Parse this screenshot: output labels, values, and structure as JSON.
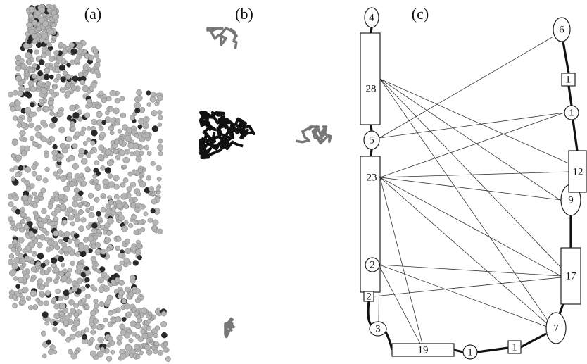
{
  "panels": [
    {
      "label": "(a)"
    },
    {
      "label": "(b)"
    },
    {
      "label": "(c)"
    }
  ],
  "nodes": [
    {
      "label": "4"
    },
    {
      "label": "28"
    },
    {
      "label": "5"
    },
    {
      "label": "23"
    },
    {
      "label": "2"
    },
    {
      "label": "2"
    },
    {
      "label": "3"
    },
    {
      "label": "19"
    },
    {
      "label": "1"
    },
    {
      "label": "1"
    },
    {
      "label": "7"
    },
    {
      "label": "17"
    },
    {
      "label": "9"
    },
    {
      "label": "12"
    },
    {
      "label": "1"
    },
    {
      "label": "1"
    },
    {
      "label": "6"
    }
  ]
}
